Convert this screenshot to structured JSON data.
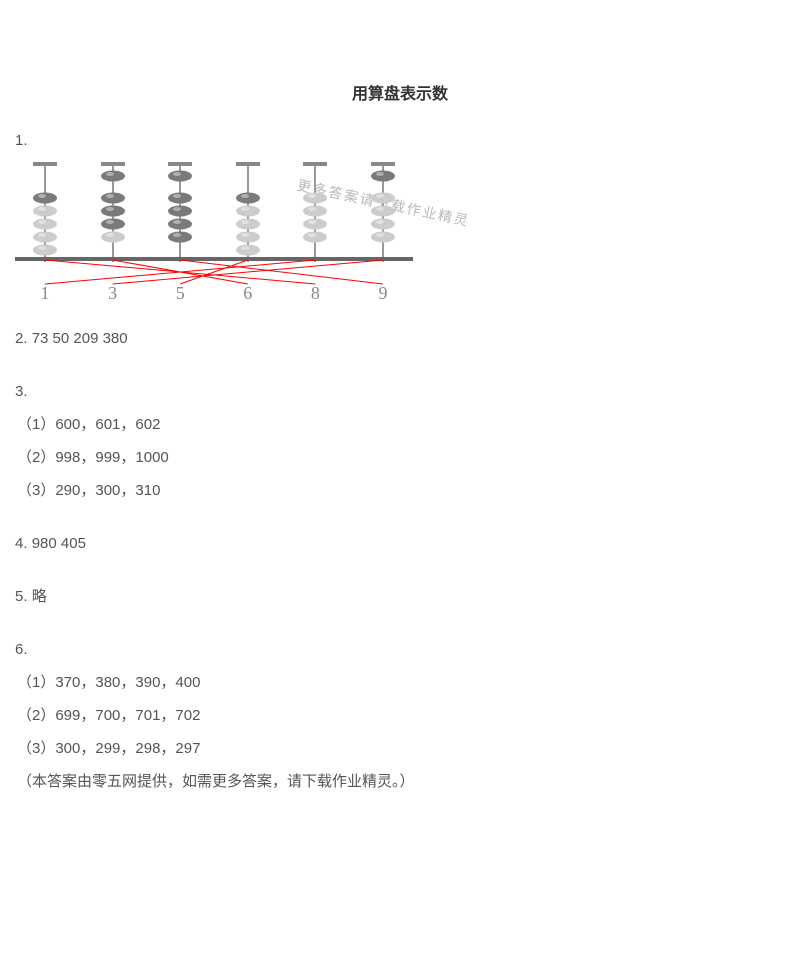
{
  "title": "用算盘表示数",
  "q1": {
    "label": "1.",
    "abacus": {
      "columns": [
        {
          "top_beads": 0,
          "bottom_beads": 1,
          "bottom_light": 4,
          "label": "1"
        },
        {
          "top_beads": 1,
          "bottom_beads": 3,
          "bottom_light": 1,
          "label": "3"
        },
        {
          "top_beads": 1,
          "bottom_beads": 4,
          "bottom_light": 0,
          "label": "5"
        },
        {
          "top_beads": 0,
          "bottom_beads": 1,
          "bottom_light": 4,
          "label": "6"
        },
        {
          "top_beads": 0,
          "bottom_beads": 0,
          "bottom_light": 4,
          "label": "8"
        },
        {
          "top_beads": 1,
          "bottom_beads": 0,
          "bottom_light": 4,
          "label": "9"
        }
      ],
      "bead_dark": "#7a7a7a",
      "bead_light": "#cccccc",
      "line_color": "#ff0000",
      "cross_pairs": [
        [
          0,
          4
        ],
        [
          1,
          3
        ],
        [
          2,
          5
        ],
        [
          3,
          2
        ],
        [
          4,
          0
        ],
        [
          5,
          1
        ]
      ]
    },
    "watermark": "更多答案请下载作业精灵"
  },
  "q2": {
    "label": "2.",
    "text": "73   50   209   380"
  },
  "q3": {
    "label": "3.",
    "items": [
      "（1）600，601，602",
      "（2）998，999，1000",
      "（3）290，300，310"
    ]
  },
  "q4": {
    "label": "4.",
    "text": "980     405"
  },
  "q5": {
    "label": "5.",
    "text": "略"
  },
  "q6": {
    "label": "6.",
    "items": [
      "（1）370，380，390，400",
      "（2）699，700，701，702",
      "（3）300，299，298，297"
    ],
    "note": "（本答案由零五网提供，如需更多答案，请下载作业精灵。）"
  }
}
